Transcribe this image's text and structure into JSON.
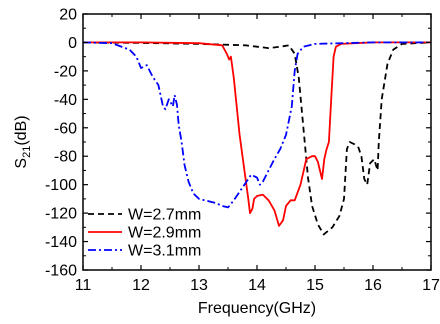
{
  "chart_data": {
    "type": "line",
    "xlabel": "Frequency(GHz)",
    "ylabel": {
      "main": "S",
      "sub": "21",
      "unit": "(dB)"
    },
    "xlim": [
      11,
      17
    ],
    "ylim": [
      -160,
      20
    ],
    "xticks": [
      "11",
      "12",
      "13",
      "14",
      "15",
      "16",
      "17"
    ],
    "yticks": [
      "20",
      "0",
      "-20",
      "-40",
      "-60",
      "-80",
      "-100",
      "-120",
      "-140",
      "-160"
    ],
    "grid": false,
    "legend_position": "bottom-left",
    "series": [
      {
        "name": "W=2.7mm",
        "color": "#000000",
        "dash": "dashed",
        "points": [
          [
            11,
            0
          ],
          [
            12,
            -0.3
          ],
          [
            13,
            -1
          ],
          [
            13.8,
            -2
          ],
          [
            14.2,
            -4
          ],
          [
            14.4,
            -3
          ],
          [
            14.55,
            -2
          ],
          [
            14.65,
            -8
          ],
          [
            14.72,
            -25
          ],
          [
            14.8,
            -60
          ],
          [
            14.88,
            -95
          ],
          [
            14.95,
            -115
          ],
          [
            15.05,
            -128
          ],
          [
            15.15,
            -135
          ],
          [
            15.3,
            -130
          ],
          [
            15.42,
            -122
          ],
          [
            15.5,
            -110
          ],
          [
            15.55,
            -75
          ],
          [
            15.6,
            -70
          ],
          [
            15.7,
            -72
          ],
          [
            15.75,
            -74
          ],
          [
            15.8,
            -80
          ],
          [
            15.85,
            -96
          ],
          [
            15.9,
            -100
          ],
          [
            15.95,
            -85
          ],
          [
            16.02,
            -82
          ],
          [
            16.08,
            -90
          ],
          [
            16.1,
            -70
          ],
          [
            16.15,
            -40
          ],
          [
            16.25,
            -15
          ],
          [
            16.35,
            -5
          ],
          [
            16.5,
            -1
          ],
          [
            17,
            0
          ]
        ]
      },
      {
        "name": "W=2.9mm",
        "color": "#ff0000",
        "dash": "solid",
        "points": [
          [
            11,
            0
          ],
          [
            12,
            0
          ],
          [
            13,
            -0.5
          ],
          [
            13.4,
            -2
          ],
          [
            13.48,
            -8
          ],
          [
            13.52,
            -12
          ],
          [
            13.55,
            -10
          ],
          [
            13.6,
            -25
          ],
          [
            13.65,
            -45
          ],
          [
            13.7,
            -65
          ],
          [
            13.75,
            -80
          ],
          [
            13.8,
            -95
          ],
          [
            13.85,
            -110
          ],
          [
            13.88,
            -120
          ],
          [
            13.92,
            -117
          ],
          [
            13.95,
            -110
          ],
          [
            14.0,
            -108
          ],
          [
            14.1,
            -107
          ],
          [
            14.2,
            -111
          ],
          [
            14.3,
            -118
          ],
          [
            14.38,
            -129
          ],
          [
            14.45,
            -125
          ],
          [
            14.5,
            -115
          ],
          [
            14.58,
            -111
          ],
          [
            14.65,
            -111
          ],
          [
            14.75,
            -100
          ],
          [
            14.85,
            -82
          ],
          [
            14.95,
            -80
          ],
          [
            15.0,
            -80
          ],
          [
            15.05,
            -84
          ],
          [
            15.08,
            -89
          ],
          [
            15.12,
            -96
          ],
          [
            15.16,
            -82
          ],
          [
            15.2,
            -75
          ],
          [
            15.24,
            -70
          ],
          [
            15.28,
            -40
          ],
          [
            15.32,
            -10
          ],
          [
            15.36,
            -3
          ],
          [
            15.45,
            -1
          ],
          [
            16,
            0
          ],
          [
            17,
            0
          ]
        ]
      },
      {
        "name": "W=3.1mm",
        "color": "#0000ff",
        "dash": "dashdot",
        "points": [
          [
            11,
            0
          ],
          [
            11.5,
            -0.5
          ],
          [
            11.8,
            -5
          ],
          [
            11.92,
            -10
          ],
          [
            12.0,
            -18
          ],
          [
            12.1,
            -16
          ],
          [
            12.2,
            -24
          ],
          [
            12.3,
            -30
          ],
          [
            12.38,
            -45
          ],
          [
            12.42,
            -47
          ],
          [
            12.48,
            -40
          ],
          [
            12.55,
            -45
          ],
          [
            12.58,
            -37
          ],
          [
            12.62,
            -44
          ],
          [
            12.65,
            -58
          ],
          [
            12.7,
            -70
          ],
          [
            12.75,
            -86
          ],
          [
            12.82,
            -98
          ],
          [
            12.9,
            -106
          ],
          [
            13.0,
            -110
          ],
          [
            13.1,
            -111
          ],
          [
            13.2,
            -112
          ],
          [
            13.3,
            -113
          ],
          [
            13.4,
            -115
          ],
          [
            13.5,
            -116
          ],
          [
            13.6,
            -111
          ],
          [
            13.7,
            -105
          ],
          [
            13.8,
            -99
          ],
          [
            13.9,
            -93
          ],
          [
            14.0,
            -95
          ],
          [
            14.05,
            -100
          ],
          [
            14.1,
            -98
          ],
          [
            14.2,
            -90
          ],
          [
            14.3,
            -82
          ],
          [
            14.4,
            -75
          ],
          [
            14.5,
            -65
          ],
          [
            14.6,
            -45
          ],
          [
            14.65,
            -20
          ],
          [
            14.7,
            -8
          ],
          [
            14.8,
            -3
          ],
          [
            15,
            -1
          ],
          [
            16,
            0
          ],
          [
            17,
            0
          ]
        ]
      }
    ]
  }
}
